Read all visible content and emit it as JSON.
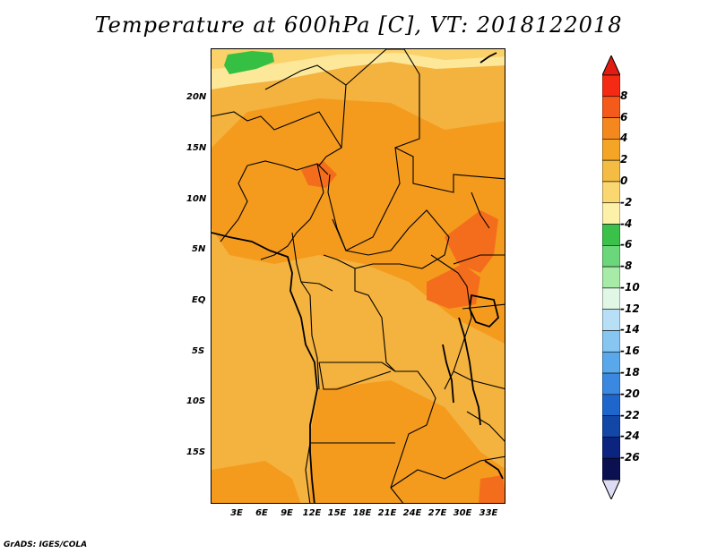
{
  "title": "Temperature at 600hPa [C], VT: 2018122018",
  "credit": "GrADS: IGES/COLA",
  "map": {
    "region": "Central Africa",
    "lat_ticks": [
      "20N",
      "15N",
      "10N",
      "5N",
      "EQ",
      "5S",
      "10S",
      "15S"
    ],
    "lon_ticks": [
      "3E",
      "6E",
      "9E",
      "12E",
      "15E",
      "18E",
      "21E",
      "24E",
      "27E",
      "30E",
      "33E"
    ],
    "field_colors": {
      "base": "#f4b23e",
      "warm": "#f49b1e",
      "hot": "#f46d1c",
      "cool": "#fbd16a",
      "cold": "#fde89a",
      "green": "#35c043"
    }
  },
  "colorbar": {
    "labels": [
      "8",
      "6",
      "4",
      "2",
      "0",
      "-2",
      "-4",
      "-6",
      "-8",
      "-10",
      "-12",
      "-14",
      "-16",
      "-18",
      "-20",
      "-22",
      "-24",
      "-26"
    ],
    "colors": [
      "#f42a14",
      "#f45a1a",
      "#f4881e",
      "#f4a526",
      "#f4bc43",
      "#fbd772",
      "#fdf0a8",
      "#3bc14a",
      "#6bd67a",
      "#a8eaa8",
      "#e0f7e6",
      "#b7e0f6",
      "#87c6f1",
      "#5aa8ec",
      "#3b88e0",
      "#1f66cc",
      "#1247a8",
      "#0a2480",
      "#0a1050"
    ],
    "end_top": "#e21c10",
    "end_bottom": "#dcdcf4"
  }
}
